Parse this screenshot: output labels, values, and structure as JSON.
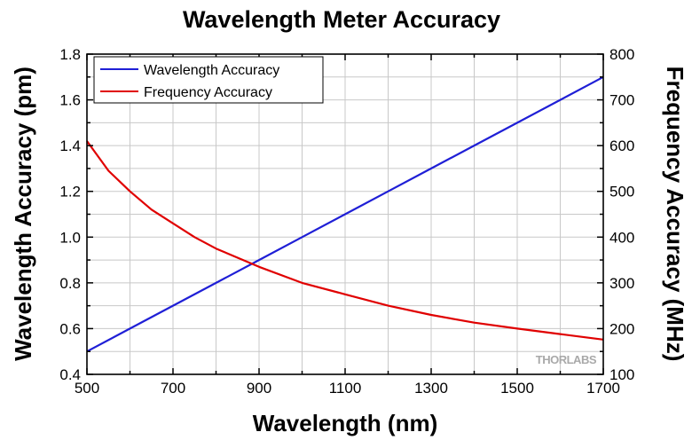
{
  "chart_data": {
    "type": "line",
    "title": "Wavelength Meter Accuracy",
    "xlabel": "Wavelength (nm)",
    "ylabel": "Wavelength Accuracy (pm)",
    "y2label": "Frequency Accuracy (MHz)",
    "xlim": [
      500,
      1700
    ],
    "ylim": [
      0.4,
      1.8
    ],
    "y2lim": [
      100,
      800
    ],
    "xticks": [
      500,
      700,
      900,
      1100,
      1300,
      1500,
      1700
    ],
    "yticks": [
      "0.4",
      "0.6",
      "0.8",
      "1.0",
      "1.2",
      "1.4",
      "1.6",
      "1.8"
    ],
    "y2ticks": [
      100,
      200,
      300,
      400,
      500,
      600,
      700,
      800
    ],
    "grid": true,
    "legend_position": "top-left",
    "watermark": "THORLABS",
    "series": [
      {
        "name": "Wavelength Accuracy",
        "axis": "left",
        "color": "#1f1fd6",
        "x": [
          500,
          600,
          700,
          800,
          900,
          1000,
          1100,
          1200,
          1300,
          1400,
          1500,
          1600,
          1700
        ],
        "y": [
          0.5,
          0.6,
          0.7,
          0.8,
          0.9,
          1.0,
          1.1,
          1.2,
          1.3,
          1.4,
          1.5,
          1.6,
          1.7
        ]
      },
      {
        "name": "Frequency Accuracy",
        "axis": "right",
        "color": "#e00000",
        "x": [
          500,
          550,
          600,
          650,
          700,
          750,
          800,
          900,
          1000,
          1100,
          1200,
          1300,
          1400,
          1500,
          1600,
          1700
        ],
        "y": [
          610,
          545,
          500,
          460,
          430,
          400,
          375,
          335,
          300,
          275,
          250,
          230,
          213,
          200,
          188,
          176
        ]
      }
    ]
  }
}
